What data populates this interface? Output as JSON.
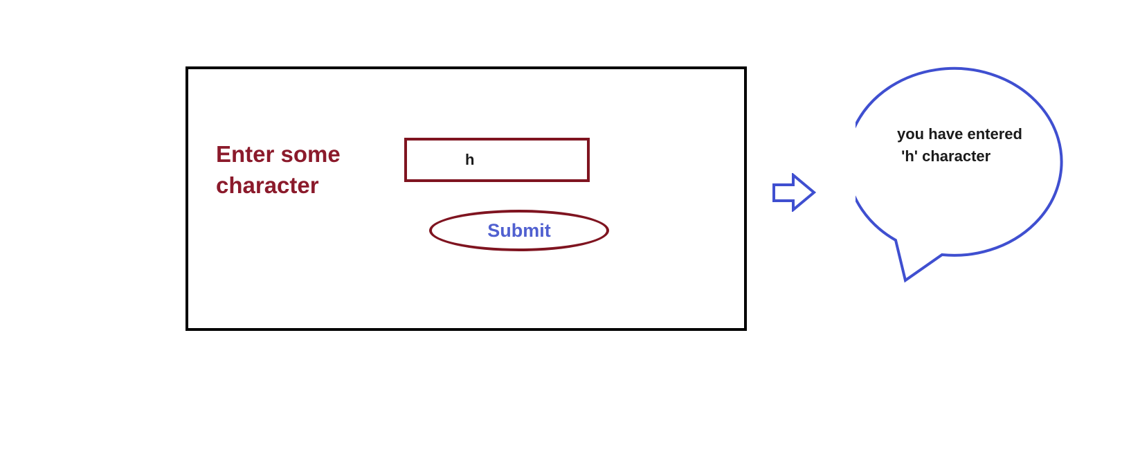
{
  "form": {
    "prompt_lines": [
      "Enter some",
      "character"
    ],
    "input_value": "h",
    "submit_label": "Submit"
  },
  "output": {
    "message_lines": [
      "you have entered",
      " 'h' character"
    ]
  },
  "icons": {
    "arrow": "right-arrow-icon",
    "bubble": "speech-bubble"
  },
  "colors": {
    "frame": "#000000",
    "prompt_text": "#8b1a2b",
    "input_border": "#7f1420",
    "submit_text": "#5060d0",
    "arrow_and_bubble": "#3f4fd0"
  }
}
